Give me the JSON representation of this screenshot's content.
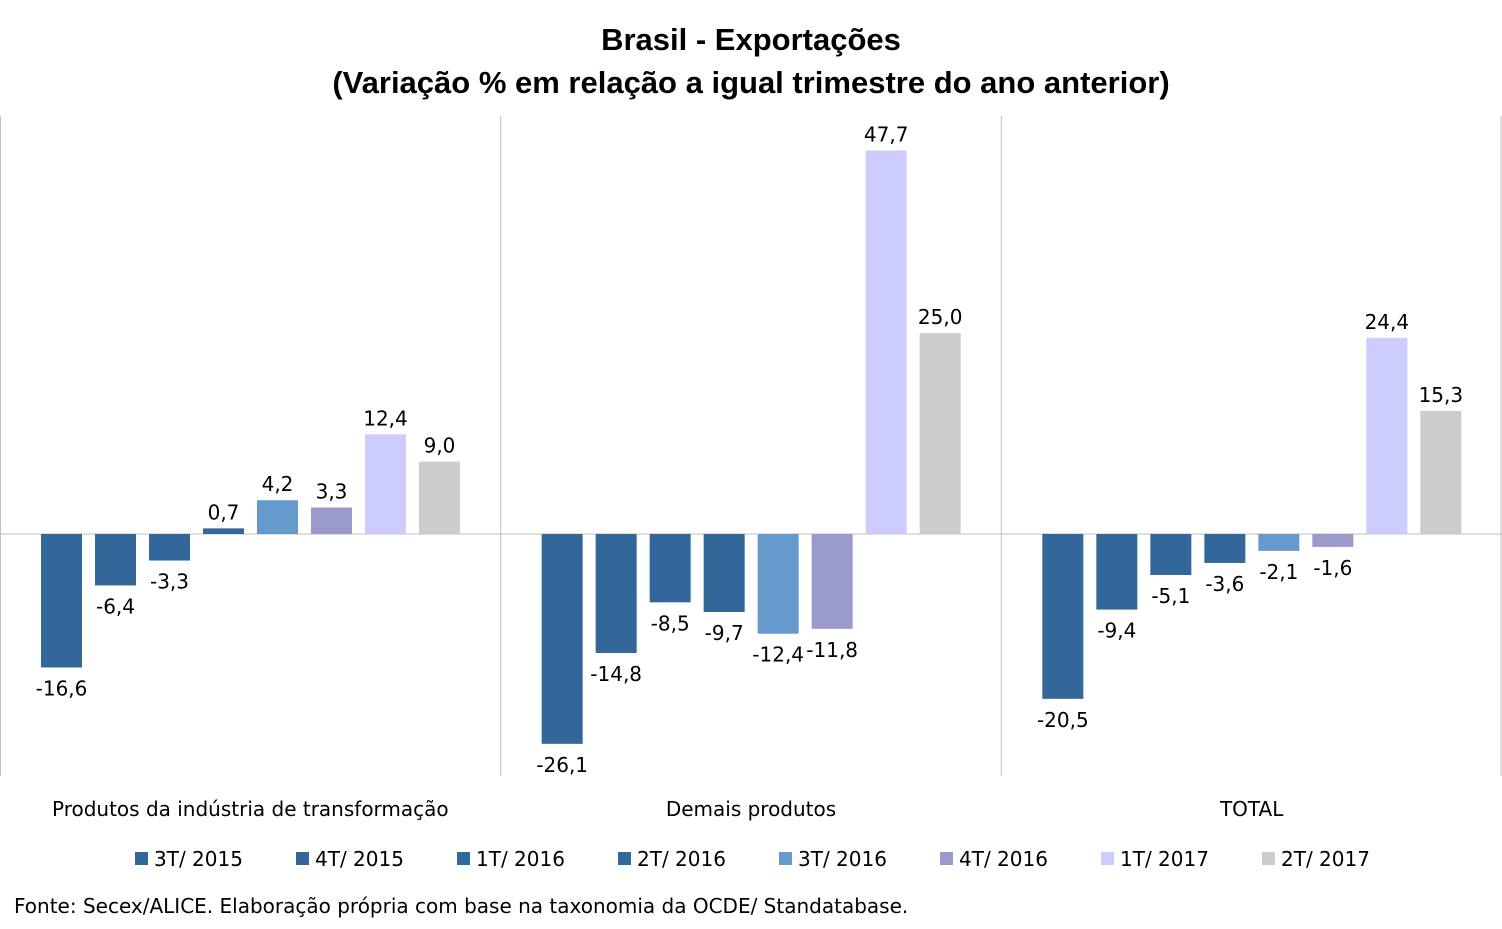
{
  "chart_data": {
    "type": "bar",
    "title": "Brasil - Exportações",
    "subtitle": "(Variação % em relação a igual trimestre do ano anterior)",
    "categories": [
      "Produtos da indústria de transformação",
      "Demais produtos",
      "TOTAL"
    ],
    "series": [
      {
        "name": "3T/ 2015",
        "color": "#336699",
        "values": [
          -16.6,
          -26.1,
          -20.5
        ],
        "labels": [
          "-16,6",
          "-26,1",
          "-20,5"
        ]
      },
      {
        "name": "4T/ 2015",
        "color": "#336699",
        "values": [
          -6.4,
          -14.8,
          -9.4
        ],
        "labels": [
          "-6,4",
          "-14,8",
          "-9,4"
        ]
      },
      {
        "name": "1T/ 2016",
        "color": "#336699",
        "values": [
          -3.3,
          -8.5,
          -5.1
        ],
        "labels": [
          "-3,3",
          "-8,5",
          "-5,1"
        ]
      },
      {
        "name": "2T/ 2016",
        "color": "#336699",
        "values": [
          0.7,
          -9.7,
          -3.6
        ],
        "labels": [
          "0,7",
          "-9,7",
          "-3,6"
        ]
      },
      {
        "name": "3T/ 2016",
        "color": "#6699CC",
        "values": [
          4.2,
          -12.4,
          -2.1
        ],
        "labels": [
          "4,2",
          "-12,4",
          "-2,1"
        ]
      },
      {
        "name": "4T/ 2016",
        "color": "#9999CC",
        "values": [
          3.3,
          -11.8,
          -1.6
        ],
        "labels": [
          "3,3",
          "-11,8",
          "-1,6"
        ]
      },
      {
        "name": "1T/ 2017",
        "color": "#CCCCFF",
        "values": [
          12.4,
          47.7,
          24.4
        ],
        "labels": [
          "12,4",
          "47,7",
          "24,4"
        ]
      },
      {
        "name": "2T/ 2017",
        "color": "#CCCCCC",
        "values": [
          9.0,
          25.0,
          15.3
        ],
        "labels": [
          "9,0",
          "25,0",
          "15,3"
        ]
      }
    ],
    "ylim": [
      -30,
      52
    ],
    "grid": false,
    "legend_position": "bottom"
  },
  "source": "Fonte: Secex/ALICE. Elaboração própria com base na taxonomia da OCDE/ Standatabase."
}
